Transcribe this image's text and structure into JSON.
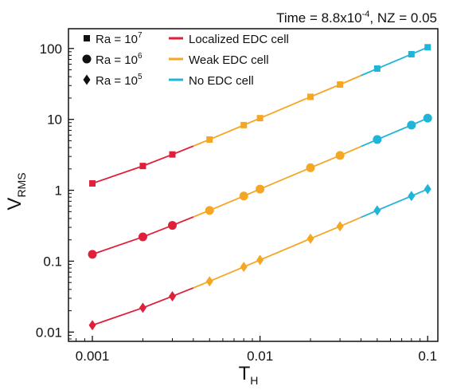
{
  "chart_data": {
    "type": "line",
    "title": {
      "time_label": "Time = 8.8x10",
      "time_exp": "-4",
      "rest": ", NZ = 0.05"
    },
    "xlabel": {
      "main": "T",
      "sub": "H"
    },
    "ylabel": {
      "main": "V",
      "sub": "RMS"
    },
    "x_scale": "log",
    "y_scale": "log",
    "xlim": [
      0.00072,
      0.115
    ],
    "ylim": [
      0.0074,
      190
    ],
    "x_ticks": [
      {
        "value": 0.001,
        "label": "0.001"
      },
      {
        "value": 0.01,
        "label": "0.01"
      },
      {
        "value": 0.1,
        "label": "0.1"
      }
    ],
    "y_ticks": [
      {
        "value": 0.01,
        "label": "0.01"
      },
      {
        "value": 0.1,
        "label": "0.1"
      },
      {
        "value": 1,
        "label": "1"
      },
      {
        "value": 10,
        "label": "10"
      },
      {
        "value": 100,
        "label": "100"
      }
    ],
    "grid": false,
    "legend_markers": [
      {
        "symbol": "square",
        "label": "Ra = 10",
        "exp": "7"
      },
      {
        "symbol": "circle",
        "label": "Ra = 10",
        "exp": "6"
      },
      {
        "symbol": "diamond",
        "label": "Ra = 10",
        "exp": "5"
      }
    ],
    "legend_lines": [
      {
        "label": "Localized EDC cell",
        "color": "#e0203a"
      },
      {
        "label": "Weak EDC cell",
        "color": "#f5a623"
      },
      {
        "label": "No EDC cell",
        "color": "#1fb5d8"
      }
    ],
    "regime_colors": {
      "localized": "#e0203a",
      "weak": "#f5a623",
      "none": "#1fb5d8"
    },
    "regime_boundaries": [
      0.004,
      0.04
    ],
    "series": [
      {
        "name": "Ra = 10^7",
        "marker": "square",
        "x": [
          0.001,
          0.002,
          0.003,
          0.005,
          0.008,
          0.01,
          0.02,
          0.03,
          0.05,
          0.08,
          0.1
        ],
        "y": [
          1.25,
          2.2,
          3.2,
          5.2,
          8.3,
          10.4,
          20.8,
          31,
          52,
          83,
          104
        ]
      },
      {
        "name": "Ra = 10^6",
        "marker": "circle",
        "x": [
          0.001,
          0.002,
          0.003,
          0.005,
          0.008,
          0.01,
          0.02,
          0.03,
          0.05,
          0.08,
          0.1
        ],
        "y": [
          0.125,
          0.22,
          0.32,
          0.52,
          0.83,
          1.04,
          2.08,
          3.1,
          5.2,
          8.3,
          10.4
        ]
      },
      {
        "name": "Ra = 10^5",
        "marker": "diamond",
        "x": [
          0.001,
          0.002,
          0.003,
          0.005,
          0.008,
          0.01,
          0.02,
          0.03,
          0.05,
          0.08,
          0.1
        ],
        "y": [
          0.0125,
          0.022,
          0.032,
          0.052,
          0.083,
          0.104,
          0.208,
          0.31,
          0.52,
          0.83,
          1.04
        ]
      }
    ]
  }
}
